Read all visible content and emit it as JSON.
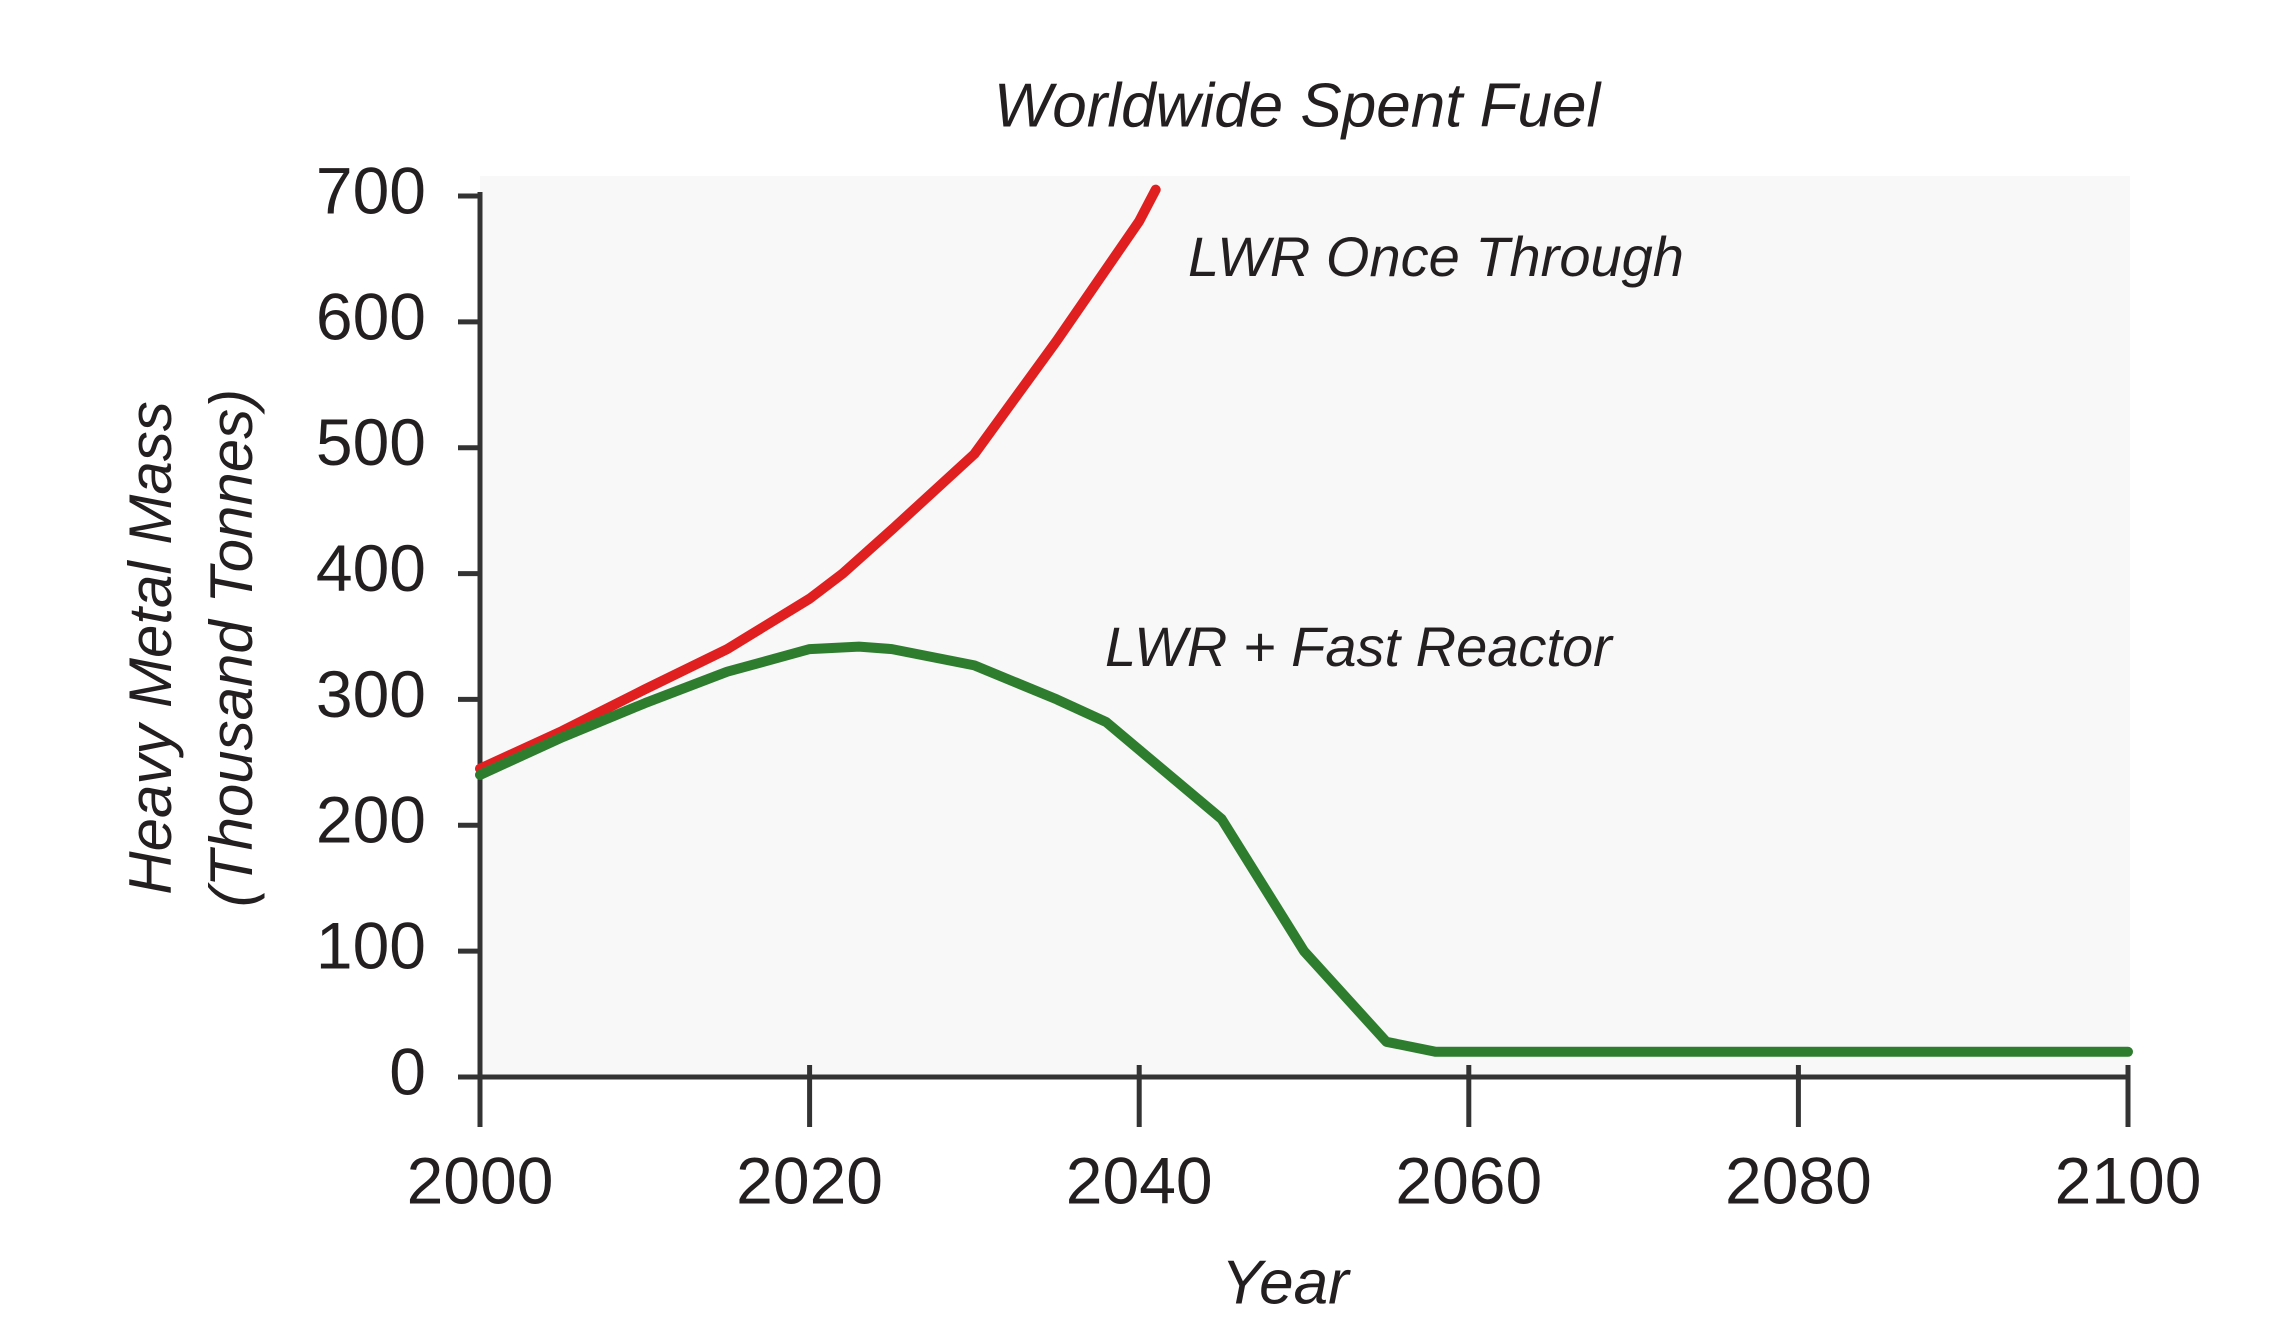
{
  "chart_data": {
    "type": "line",
    "title": "Worldwide Spent Fuel",
    "x_label": "Year",
    "y_label": [
      "Heavy Metal Mass",
      "(Thousand Tonnes)"
    ],
    "xlim": [
      2000,
      2100
    ],
    "xticks": [
      2000,
      2020,
      2040,
      2060,
      2080,
      2100
    ],
    "ylim": [
      0,
      700
    ],
    "yticks": [
      0,
      100,
      200,
      300,
      400,
      500,
      600,
      700
    ],
    "grid": false,
    "series": [
      {
        "name": "LWR Once Through",
        "color": "#e02020",
        "x": [
          2000,
          2005,
          2010,
          2015,
          2020,
          2022,
          2025,
          2030,
          2035,
          2040,
          2041
        ],
        "values": [
          245,
          275,
          308,
          340,
          380,
          400,
          435,
          495,
          585,
          680,
          705
        ]
      },
      {
        "name": "LWR + Fast Reactor",
        "color": "#2e7d2e",
        "x": [
          2000,
          2005,
          2010,
          2015,
          2020,
          2023,
          2025,
          2030,
          2035,
          2038,
          2040,
          2045,
          2050,
          2055,
          2058,
          2060,
          2100
        ],
        "values": [
          240,
          270,
          297,
          322,
          340,
          342,
          340,
          327,
          300,
          282,
          260,
          205,
          100,
          28,
          20,
          20,
          20
        ]
      }
    ]
  }
}
